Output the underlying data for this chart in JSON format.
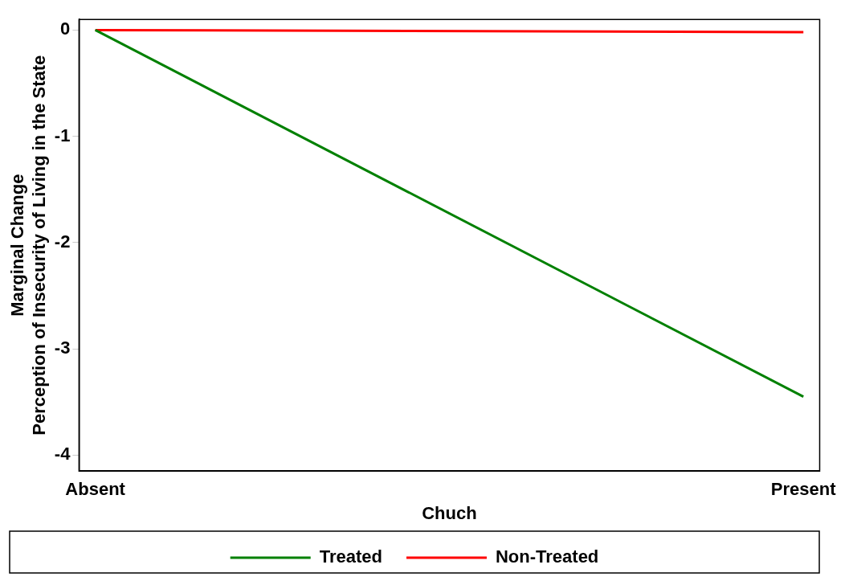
{
  "chart_data": {
    "type": "line",
    "categories": [
      "Absent",
      "Present"
    ],
    "xlabel": "Chuch",
    "ylabel": "Marginal Change\nPerception of Insecurity of Living in the State",
    "ylim": [
      -4.15,
      0.1
    ],
    "yticks": [
      0,
      -1,
      -2,
      -3,
      -4
    ],
    "grid": false,
    "legend": "bottom",
    "marker": "none",
    "line_style": "solid",
    "series": [
      {
        "name": "Treated",
        "color": "#008000",
        "values": [
          0,
          -3.45
        ]
      },
      {
        "name": "Non-Treated",
        "color": "#ff0000",
        "values": [
          0,
          -0.02
        ]
      }
    ]
  }
}
